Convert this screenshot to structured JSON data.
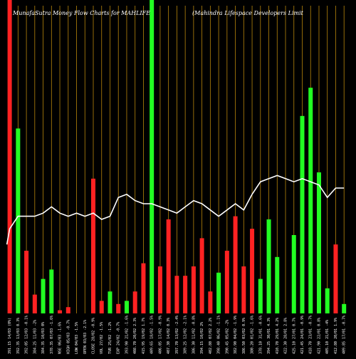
{
  "title_left": "MunafaSutra  Money Flow  Charts for MAHLIFE",
  "title_right": "(Mahindra  Lifespace  Developers Limit",
  "colors": {
    "background": "#000000",
    "up": "#22ff22",
    "down": "#ff2222",
    "line": "#ffffff",
    "grid": "#b8860b"
  },
  "chart_data": {
    "type": "bar",
    "title": "MunafaSutra  Money Flow  Charts for MAHLIFE (Mahindra  Lifespace  Developers Limit",
    "xlabel": "",
    "ylabel": "",
    "ylim": [
      0,
      100
    ],
    "grid": true,
    "categories": [
      "391.15 14/03 (0%)",
      "392.35 13/03 0.3%",
      "392.05 12/03 -0.1%",
      "384.25 11/03 -2%",
      "384.35 10/03 0%",
      "378.35 07/03 -1.6%",
      "NSE 06/03 -1.6%",
      "HIGH 05/03 -0.7%",
      "LOW 04/03 -1.5%",
      "OPEN 03/03 -2.1%",
      "CLOSE 28/02 -0.9%",
      "VOL 27/02 -1.5%",
      "TVR 25/02 -1.2%",
      "EXP 24/02 -0.7%",
      "393.90 21/02 -1.6%",
      "408.70 20/02 2.3%",
      "415.95 19/02 1.7%",
      "409.65 18/02 -1.5%",
      "406.05 17/02 -0.9%",
      "407.30 14/02 0.3%",
      "397.70 13/02 -2.4%",
      "389.25 12/02 -2.1%",
      "386.30 11/02 -0.8%",
      "394.15 10/02 2%",
      "402.80 07/02 2.2%",
      "398.40 06/02 -1.1%",
      "390.45 05/02 -2%",
      "382.90 04/02 -1.9%",
      "386.50 03/02 0.9%",
      "380.20 01/02 -1.6%",
      "378.10 31/01 -0.6%",
      "394.25 30/01 4.3%",
      "410.70 29/01 4.2%",
      "422.30 28/01 2.8%",
      "425.10 27/01 0.7%",
      "421.45 24/01 -0.9%",
      "418.70 23/01 -0.7%",
      "421.90 22/01 0.8%",
      "405.10 21/01 -4%",
      "412.80 20/01 1.9%",
      "409.85 17/01 -0.7%"
    ],
    "series": [
      {
        "values": [
          100,
          59,
          20,
          6,
          11,
          14,
          1,
          2,
          0,
          0,
          43,
          4,
          7,
          3,
          4,
          7,
          16,
          100,
          15,
          30,
          12,
          12,
          15,
          24,
          7,
          13,
          20,
          31,
          15,
          27,
          11,
          30,
          18,
          0,
          25,
          63,
          72,
          45,
          8,
          22,
          3
        ],
        "direction": [
          "down",
          "up",
          "down",
          "down",
          "up",
          "up",
          "down",
          "down",
          "up",
          "down",
          "down",
          "down",
          "up",
          "down",
          "up",
          "down",
          "down",
          "up",
          "down",
          "down",
          "down",
          "down",
          "down",
          "down",
          "down",
          "up",
          "down",
          "down",
          "down",
          "down",
          "up",
          "up",
          "up",
          "up",
          "up",
          "up",
          "up",
          "up",
          "up",
          "down",
          "up"
        ]
      },
      {
        "values": [
          27,
          31,
          31,
          31,
          32,
          34,
          32,
          31,
          32,
          31,
          32,
          30,
          31,
          37,
          38,
          36,
          35,
          35,
          34,
          33,
          32,
          34,
          36,
          35,
          33,
          31,
          33,
          35,
          33,
          38,
          42,
          43,
          44,
          43,
          42,
          43,
          42,
          41,
          37,
          40,
          40
        ]
      }
    ]
  }
}
